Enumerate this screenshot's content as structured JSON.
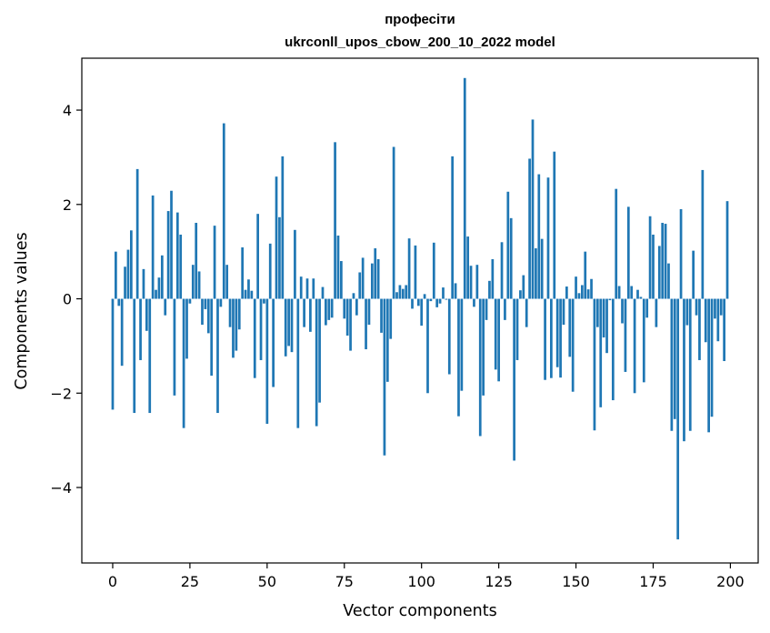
{
  "chart_data": {
    "type": "bar",
    "title_line1": "професіти",
    "title_line2": "ukrconll_upos_cbow_200_10_2022 model",
    "xlabel": "Vector components",
    "ylabel": "Components values",
    "xlim": [
      -10,
      209
    ],
    "ylim": [
      -5.6,
      5.1
    ],
    "xticks": [
      0,
      25,
      50,
      75,
      100,
      125,
      150,
      175,
      200
    ],
    "yticks": [
      -4,
      -2,
      0,
      2,
      4
    ],
    "ytick_labels": [
      "−4",
      "−2",
      "0",
      "2",
      "4"
    ],
    "grid": false,
    "color": "#1f77b4",
    "values": [
      -2.35,
      1.0,
      -0.15,
      -1.42,
      0.68,
      1.04,
      1.45,
      -2.42,
      2.75,
      -1.3,
      0.63,
      -0.68,
      -2.42,
      2.19,
      0.19,
      0.45,
      0.92,
      -0.35,
      1.86,
      2.29,
      -2.05,
      1.83,
      1.36,
      -2.74,
      -1.27,
      -0.1,
      0.72,
      1.61,
      0.58,
      -0.55,
      -0.22,
      -0.73,
      -1.63,
      1.55,
      -2.42,
      -0.17,
      3.72,
      0.72,
      -0.6,
      -1.25,
      -1.1,
      -0.65,
      1.09,
      0.19,
      0.41,
      0.17,
      -1.68,
      1.8,
      -1.3,
      -0.1,
      -2.65,
      1.17,
      -1.87,
      2.59,
      1.73,
      3.02,
      -1.22,
      -1.0,
      -1.13,
      1.46,
      -2.74,
      0.47,
      -0.6,
      0.43,
      -0.7,
      0.43,
      -2.7,
      -2.2,
      0.25,
      -0.56,
      -0.45,
      -0.4,
      3.32,
      1.34,
      0.8,
      -0.42,
      -0.78,
      -1.1,
      0.12,
      -0.35,
      0.56,
      0.87,
      -1.07,
      -0.55,
      0.75,
      1.07,
      0.84,
      -0.72,
      -3.32,
      -1.76,
      -0.85,
      3.22,
      0.14,
      0.29,
      0.21,
      0.29,
      1.28,
      -0.21,
      1.13,
      -0.15,
      -0.57,
      0.1,
      -2.0,
      -0.05,
      1.19,
      -0.18,
      -0.1,
      0.24,
      -0.02,
      -1.6,
      3.02,
      0.33,
      -2.49,
      -1.95,
      4.68,
      1.32,
      0.7,
      -0.17,
      0.72,
      -2.91,
      -2.05,
      -0.45,
      0.38,
      0.84,
      -1.5,
      -1.75,
      1.2,
      -0.45,
      2.27,
      1.71,
      -3.43,
      -1.3,
      0.18,
      0.5,
      -0.6,
      2.97,
      3.8,
      1.07,
      2.64,
      1.27,
      -1.72,
      2.57,
      -1.68,
      3.12,
      -1.45,
      -1.67,
      -0.55,
      0.26,
      -1.23,
      -1.97,
      0.47,
      0.12,
      0.29,
      1.0,
      0.2,
      0.42,
      -2.79,
      -0.6,
      -2.3,
      -0.82,
      -1.15,
      -0.03,
      -2.15,
      2.33,
      0.27,
      -0.52,
      -1.55,
      1.95,
      0.27,
      -2.0,
      0.19,
      0.04,
      -1.77,
      -0.4,
      1.75,
      1.36,
      -0.6,
      1.12,
      1.61,
      1.59,
      0.75,
      -2.8,
      -2.55,
      -5.1,
      1.9,
      -3.02,
      -0.56,
      -2.8,
      1.02,
      -0.35,
      -1.3,
      2.73,
      -0.92,
      -2.83,
      -2.5,
      -0.42,
      -0.9,
      -0.35,
      -1.32,
      2.07
    ]
  }
}
